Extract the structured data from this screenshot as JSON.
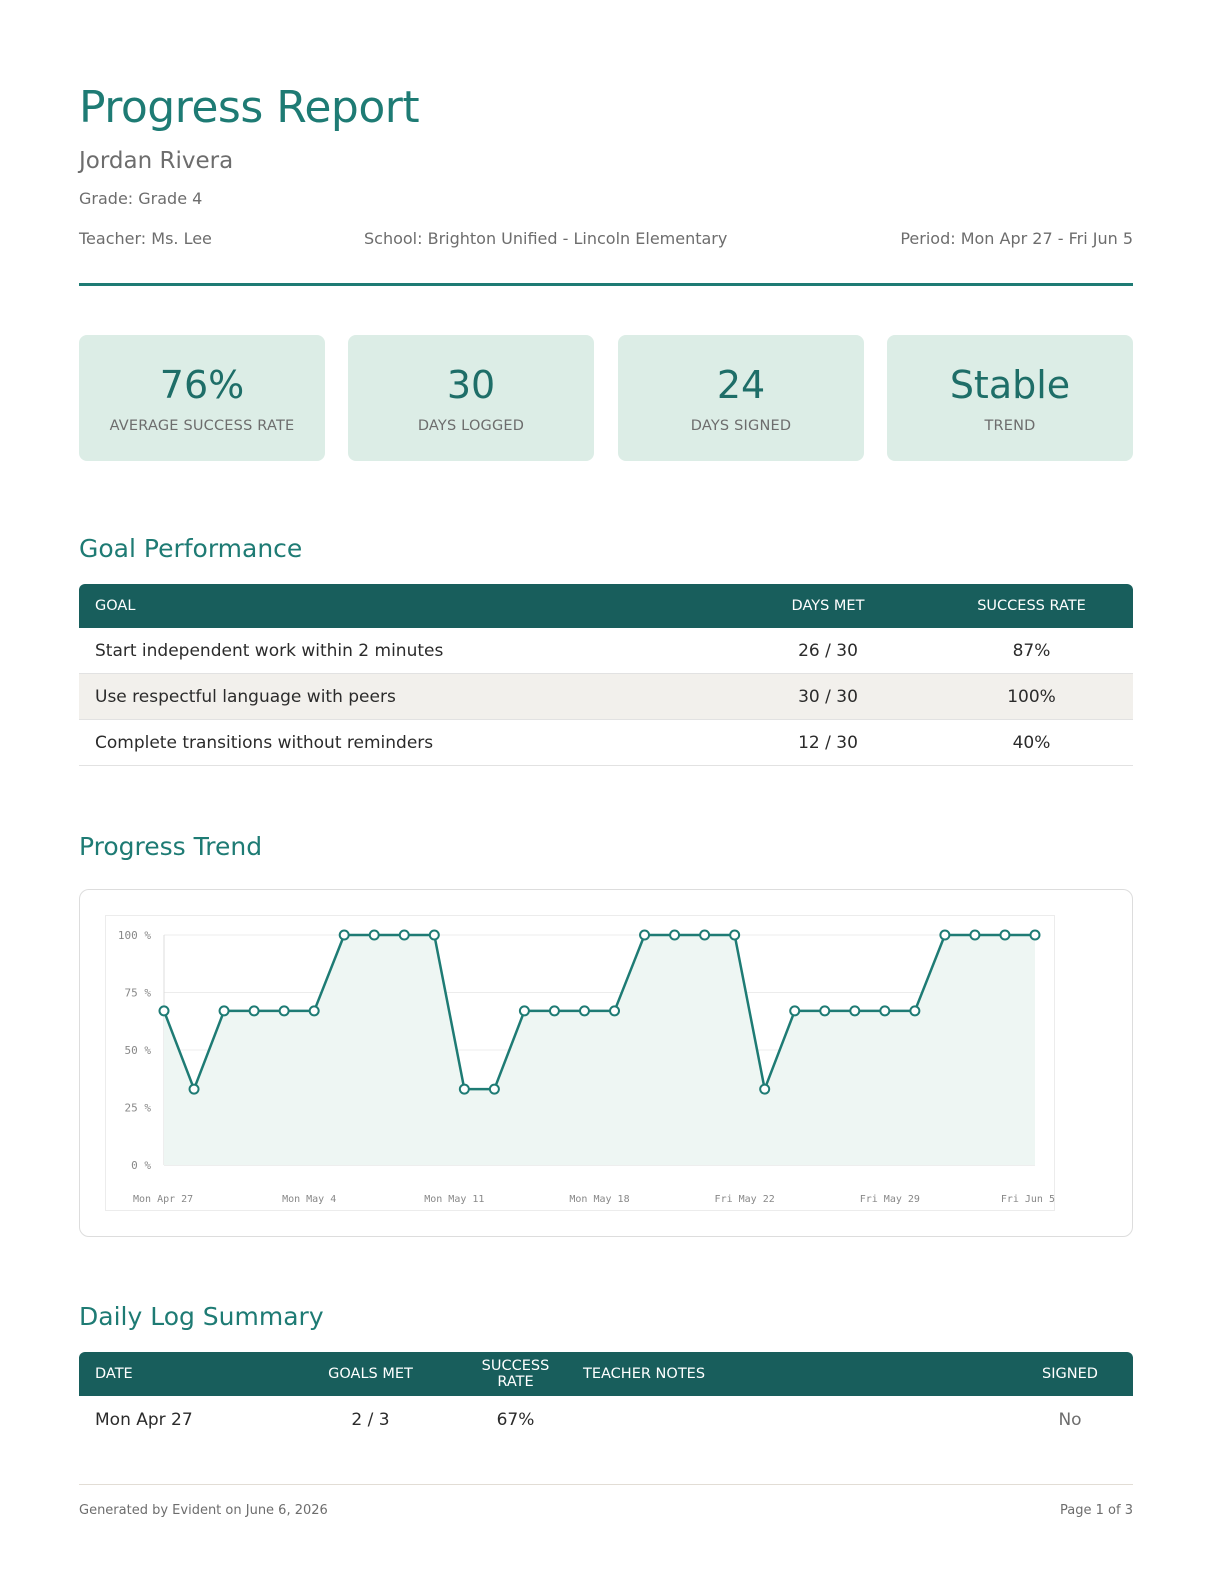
{
  "header": {
    "title": "Progress Report",
    "student_name": "Jordan Rivera",
    "grade": "Grade: Grade 4",
    "teacher": "Teacher: Ms. Lee",
    "school": "School: Brighton Unified - Lincoln Elementary",
    "period": "Period: Mon Apr 27 - Fri Jun 5"
  },
  "stats": [
    {
      "value": "76%",
      "label": "AVERAGE SUCCESS RATE"
    },
    {
      "value": "30",
      "label": "DAYS LOGGED"
    },
    {
      "value": "24",
      "label": "DAYS SIGNED"
    },
    {
      "value": "Stable",
      "label": "TREND"
    }
  ],
  "goal_performance": {
    "heading": "Goal Performance",
    "columns": [
      "GOAL",
      "DAYS MET",
      "SUCCESS RATE"
    ],
    "rows": [
      {
        "goal": "Start independent work within 2 minutes",
        "days_met": "26 / 30",
        "success_rate": "87%"
      },
      {
        "goal": "Use respectful language with peers",
        "days_met": "30 / 30",
        "success_rate": "100%"
      },
      {
        "goal": "Complete transitions without reminders",
        "days_met": "12 / 30",
        "success_rate": "40%"
      }
    ]
  },
  "progress_trend": {
    "heading": "Progress Trend"
  },
  "chart_data": {
    "type": "line",
    "title": "",
    "xlabel": "",
    "ylabel": "",
    "ylim": [
      0,
      100
    ],
    "y_ticks": [
      "0 %",
      "25 %",
      "50 %",
      "75 %",
      "100 %"
    ],
    "x_tick_labels": [
      "Mon Apr 27",
      "Mon May 4",
      "Mon May 11",
      "Mon May 18",
      "Fri May 22",
      "Fri May 29",
      "Fri Jun 5"
    ],
    "grid": true,
    "area_fill": true,
    "line_color": "#1e7b74",
    "fill_color": "#eef6f3",
    "values": [
      67,
      33,
      67,
      67,
      67,
      67,
      100,
      100,
      100,
      100,
      33,
      33,
      67,
      67,
      67,
      67,
      100,
      100,
      100,
      100,
      33,
      67,
      67,
      67,
      67,
      67,
      100,
      100,
      100,
      100
    ]
  },
  "daily_log": {
    "heading": "Daily Log Summary",
    "columns": [
      "DATE",
      "GOALS MET",
      "SUCCESS RATE",
      "TEACHER NOTES",
      "SIGNED"
    ],
    "rows": [
      {
        "date": "Mon Apr 27",
        "goals_met": "2 / 3",
        "success_rate": "67%",
        "notes": "",
        "signed": "No"
      }
    ]
  },
  "footer": {
    "generated": "Generated by Evident on June 6, 2026",
    "page": "Page 1 of 3"
  }
}
